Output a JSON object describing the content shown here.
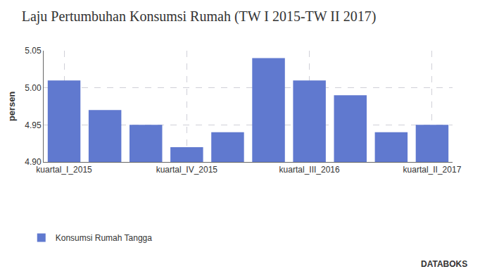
{
  "chart_data": {
    "type": "bar",
    "title": "Laju Pertumbuhan Konsumsi Rumah (TW I 2015-TW II 2017)",
    "y_label": "persen",
    "categories": [
      "kuartal_I_2015",
      null,
      null,
      "kuartal_IV_2015",
      null,
      null,
      "kuartal_III_2016",
      null,
      null,
      "kuartal_II_2017"
    ],
    "series": [
      {
        "name": "Konsumsi Rumah Tangga",
        "color": "#6079cf",
        "values": [
          5.01,
          4.97,
          4.95,
          4.92,
          4.94,
          5.04,
          5.01,
          4.99,
          4.94,
          4.95
        ]
      }
    ],
    "ylim": [
      4.9,
      5.05
    ],
    "yticks": [
      {
        "value": 4.9,
        "label": "4.90"
      },
      4.95,
      {
        "value": 5,
        "label": "5.00"
      },
      5.05
    ],
    "grid": true,
    "legend": "bottom",
    "annotations": [
      "DATABOKS"
    ]
  }
}
